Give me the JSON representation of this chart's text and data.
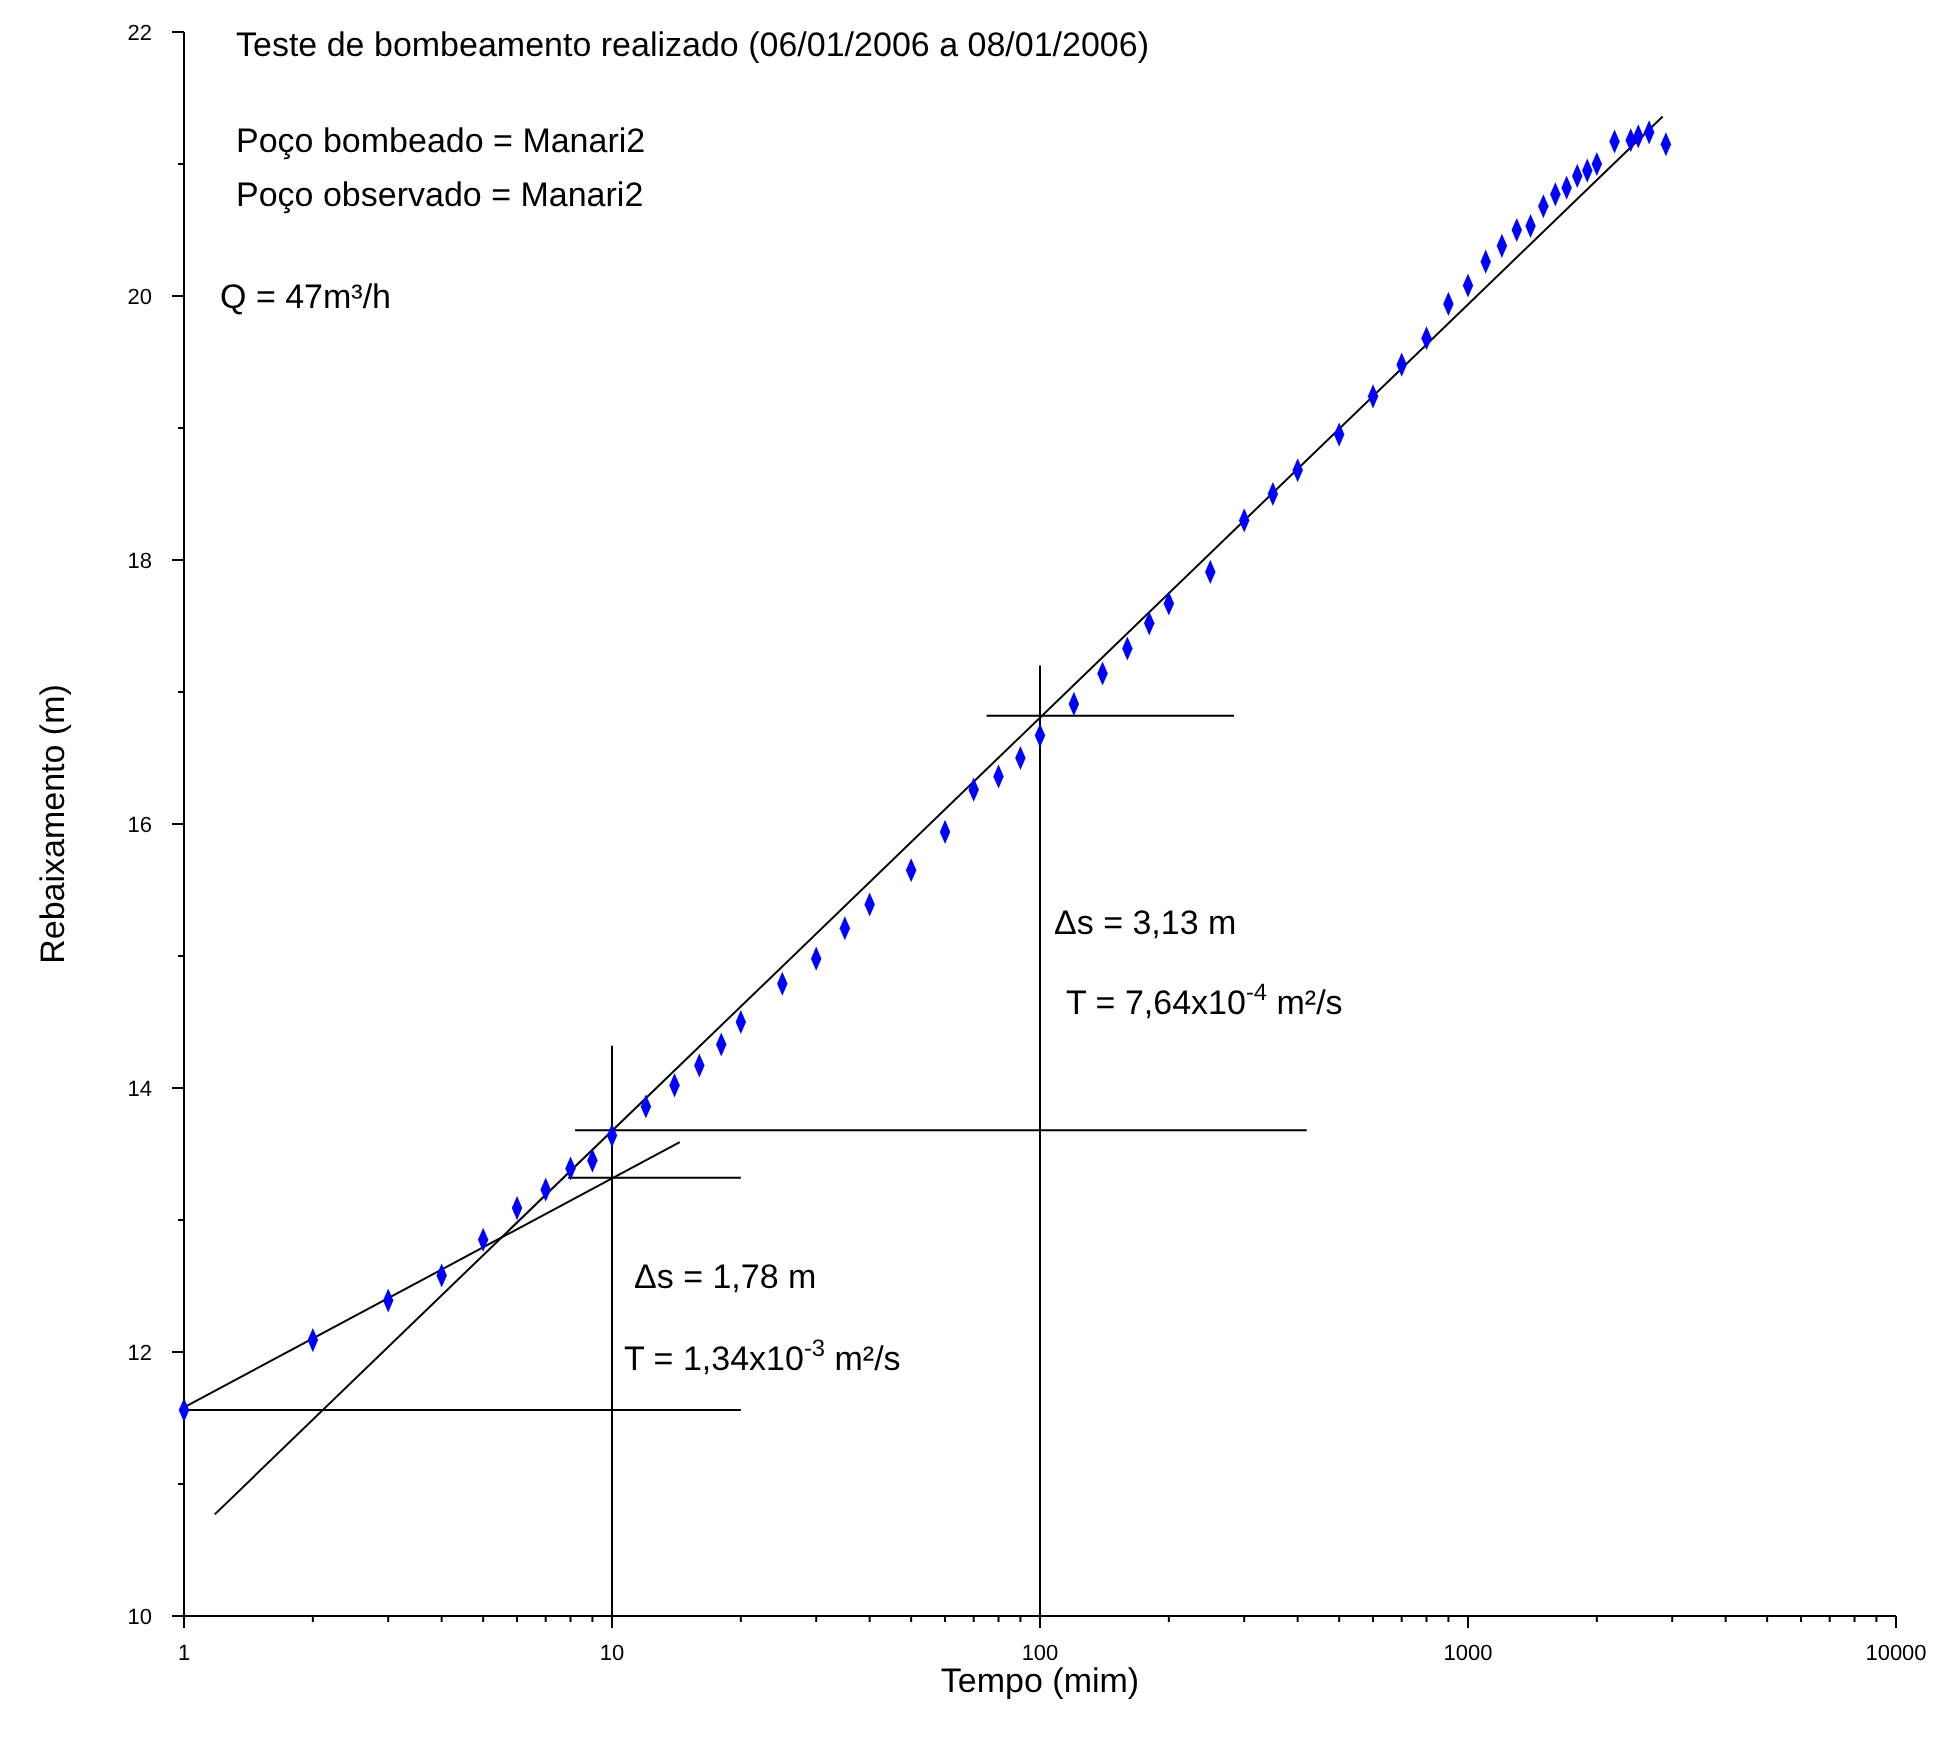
{
  "chart_data": {
    "type": "scatter",
    "title": "Teste de bombeamento realizado (06/01/2006 a 08/01/2006)",
    "xlabel": "Tempo (mim)",
    "ylabel": "Rebaixamento (m)",
    "log": "x",
    "grid": false,
    "marker": "diamond",
    "xlim": [
      1,
      10000
    ],
    "ylim": [
      10,
      22
    ],
    "xticks": [
      1,
      {
        "value": 2,
        "label": null
      },
      {
        "value": 3,
        "label": null
      },
      {
        "value": 4,
        "label": null
      },
      {
        "value": 5,
        "label": null
      },
      {
        "value": 6,
        "label": null
      },
      {
        "value": 7,
        "label": null
      },
      {
        "value": 8,
        "label": null
      },
      {
        "value": 9,
        "label": null
      },
      10,
      {
        "value": 20,
        "label": null
      },
      {
        "value": 30,
        "label": null
      },
      {
        "value": 40,
        "label": null
      },
      {
        "value": 50,
        "label": null
      },
      {
        "value": 60,
        "label": null
      },
      {
        "value": 70,
        "label": null
      },
      {
        "value": 80,
        "label": null
      },
      {
        "value": 90,
        "label": null
      },
      100,
      {
        "value": 200,
        "label": null
      },
      {
        "value": 300,
        "label": null
      },
      {
        "value": 400,
        "label": null
      },
      {
        "value": 500,
        "label": null
      },
      {
        "value": 600,
        "label": null
      },
      {
        "value": 700,
        "label": null
      },
      {
        "value": 800,
        "label": null
      },
      {
        "value": 900,
        "label": null
      },
      1000,
      {
        "value": 2000,
        "label": null
      },
      {
        "value": 3000,
        "label": null
      },
      {
        "value": 4000,
        "label": null
      },
      {
        "value": 5000,
        "label": null
      },
      {
        "value": 6000,
        "label": null
      },
      {
        "value": 7000,
        "label": null
      },
      {
        "value": 8000,
        "label": null
      },
      {
        "value": 9000,
        "label": null
      },
      10000
    ],
    "yticks": [
      10,
      {
        "value": 11,
        "label": null
      },
      12,
      {
        "value": 13,
        "label": null
      },
      14,
      {
        "value": 15,
        "label": null
      },
      16,
      {
        "value": 17,
        "label": null
      },
      18,
      {
        "value": 19,
        "label": null
      },
      20,
      {
        "value": 21,
        "label": null
      },
      22
    ],
    "annotations": [
      "Poço bombeado = Manari2",
      "Poço observado = Manari2",
      "Q = 47m³/h",
      "Δs = 3,13 m",
      "T = 7,64x10$^{-4}$ m²/s",
      "Δs = 1,78 m",
      "T = 1,34x10$^{-3}$ m²/s"
    ],
    "series": [
      {
        "color": "#0000ff",
        "x": [
          1,
          2,
          3,
          4,
          5,
          6,
          7,
          8,
          9,
          10,
          12,
          14,
          16,
          18,
          20,
          25,
          30,
          35,
          40,
          50,
          60,
          70,
          80,
          90,
          100,
          120,
          140,
          160,
          180,
          200,
          250,
          300,
          350,
          400,
          500,
          600,
          700,
          800,
          900,
          1000,
          1100,
          1200,
          1300,
          1400,
          1500,
          1600,
          1700,
          1800,
          1900,
          2000,
          2200,
          2400,
          2500,
          2650,
          2900
        ],
        "values": [
          11.56,
          12.09,
          12.39,
          12.58,
          12.85,
          13.09,
          13.23,
          13.39,
          13.45,
          13.64,
          13.86,
          14.02,
          14.17,
          14.33,
          14.5,
          14.79,
          14.98,
          15.21,
          15.39,
          15.65,
          15.94,
          16.26,
          16.36,
          16.5,
          16.67,
          16.91,
          17.14,
          17.33,
          17.52,
          17.67,
          17.91,
          18.3,
          18.5,
          18.68,
          18.95,
          19.24,
          19.48,
          19.68,
          19.94,
          20.08,
          20.26,
          20.38,
          20.5,
          20.53,
          20.68,
          20.77,
          20.82,
          20.91,
          20.95,
          21.0,
          21.17,
          21.18,
          21.21,
          21.24,
          21.15
        ]
      },
      {
        "type": "line",
        "color": "#000000",
        "marker": "none",
        "x": [
          1,
          14.4
        ],
        "values": [
          11.58,
          13.59
        ]
      },
      {
        "type": "line",
        "color": "#000000",
        "marker": "none",
        "x": [
          1.18,
          2850
        ],
        "values": [
          10.77,
          21.36
        ]
      },
      {
        "type": "line",
        "color": "#000000",
        "marker": "none",
        "x": [
          1,
          20
        ],
        "values": [
          11.56,
          11.56
        ]
      },
      {
        "type": "line",
        "color": "#000000",
        "marker": "none",
        "x": [
          10,
          10
        ],
        "values": [
          10,
          14.32
        ]
      },
      {
        "type": "line",
        "color": "#000000",
        "marker": "none",
        "x": [
          7.9,
          20
        ],
        "values": [
          13.32,
          13.32
        ]
      },
      {
        "type": "line",
        "color": "#000000",
        "marker": "none",
        "x": [
          8.2,
          420
        ],
        "values": [
          13.68,
          13.68
        ]
      },
      {
        "type": "line",
        "color": "#000000",
        "marker": "none",
        "x": [
          100,
          100
        ],
        "values": [
          10,
          17.2
        ]
      },
      {
        "type": "line",
        "color": "#000000",
        "marker": "none",
        "x": [
          75,
          284
        ],
        "values": [
          16.82,
          16.82
        ]
      }
    ]
  }
}
